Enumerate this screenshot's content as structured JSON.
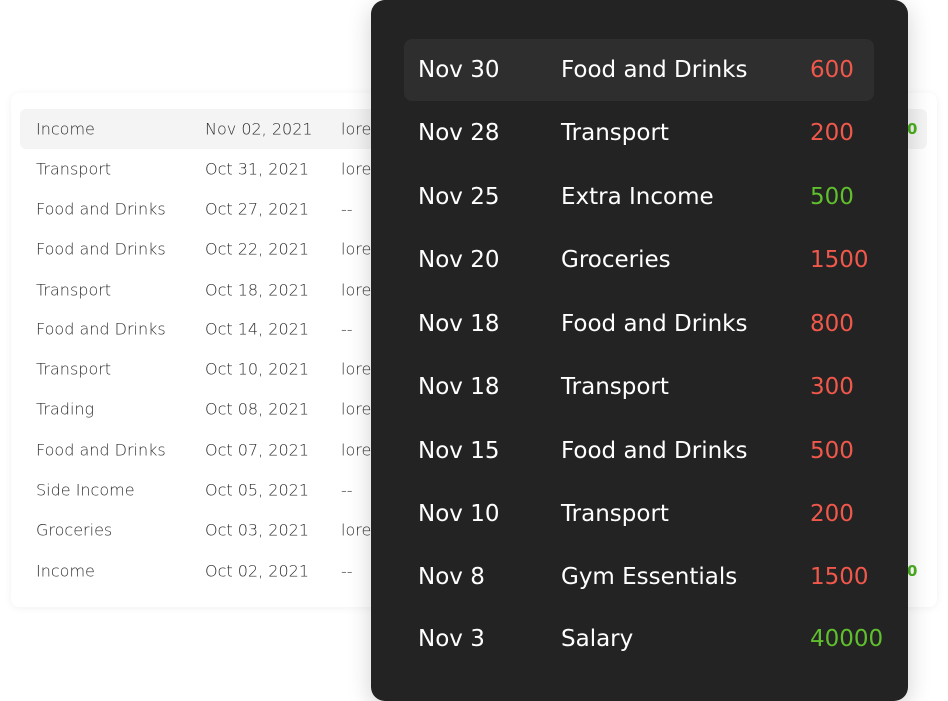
{
  "light_table": {
    "rows": [
      {
        "category": "Income",
        "date": "Nov 02, 2021",
        "note": "lore",
        "amount": "0"
      },
      {
        "category": "Transport",
        "date": "Oct 31, 2021",
        "note": "lore",
        "amount": ""
      },
      {
        "category": "Food and Drinks",
        "date": "Oct 27, 2021",
        "note": "--",
        "amount": ""
      },
      {
        "category": "Food and Drinks",
        "date": "Oct 22, 2021",
        "note": "lore",
        "amount": ""
      },
      {
        "category": "Transport",
        "date": "Oct 18, 2021",
        "note": "lore",
        "amount": ""
      },
      {
        "category": "Food and Drinks",
        "date": "Oct 14, 2021",
        "note": "--",
        "amount": ""
      },
      {
        "category": "Transport",
        "date": "Oct 10, 2021",
        "note": "lore",
        "amount": ""
      },
      {
        "category": "Trading",
        "date": "Oct 08, 2021",
        "note": "lore",
        "amount": ""
      },
      {
        "category": "Food and Drinks",
        "date": "Oct 07, 2021",
        "note": "lore",
        "amount": ""
      },
      {
        "category": "Side Income",
        "date": "Oct 05, 2021",
        "note": "--",
        "amount": ""
      },
      {
        "category": "Groceries",
        "date": "Oct 03, 2021",
        "note": "lore",
        "amount": ""
      },
      {
        "category": "Income",
        "date": "Oct 02, 2021",
        "note": "--",
        "amount": "0"
      }
    ]
  },
  "dark_panel": {
    "rows": [
      {
        "date": "Nov 30",
        "category": "Food and Drinks",
        "amount": "600"
      },
      {
        "date": "Nov 28",
        "category": "Transport",
        "amount": "200"
      },
      {
        "date": "Nov 25",
        "category": "Extra Income",
        "amount": "500"
      },
      {
        "date": "Nov 20",
        "category": "Groceries",
        "amount": "1500"
      },
      {
        "date": "Nov 18",
        "category": "Food and Drinks",
        "amount": "800"
      },
      {
        "date": "Nov 18",
        "category": "Transport",
        "amount": "300"
      },
      {
        "date": "Nov 15",
        "category": "Food and Drinks",
        "amount": "500"
      },
      {
        "date": "Nov 10",
        "category": "Transport",
        "amount": "200"
      },
      {
        "date": "Nov 8",
        "category": "Gym Essentials",
        "amount": "1500"
      },
      {
        "date": "Nov 3",
        "category": "Salary",
        "amount": "40000"
      }
    ]
  },
  "colors": {
    "expense": "#f0584b",
    "income": "#5fbf2d",
    "panel_bg": "#232323"
  }
}
